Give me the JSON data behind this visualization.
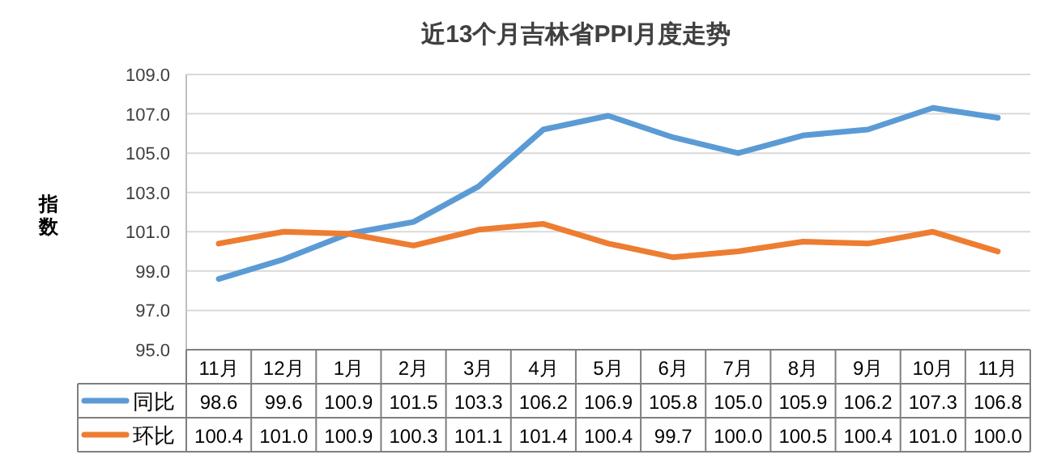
{
  "chart_data": {
    "type": "line",
    "title": "近13个月吉林省PPI月度走势",
    "ylabel": "指数",
    "categories": [
      "11月",
      "12月",
      "1月",
      "2月",
      "3月",
      "4月",
      "5月",
      "6月",
      "7月",
      "8月",
      "9月",
      "10月",
      "11月"
    ],
    "series": [
      {
        "name": "同比",
        "color": "#5b9bd5",
        "values": [
          98.6,
          99.6,
          100.9,
          101.5,
          103.3,
          106.2,
          106.9,
          105.8,
          105.0,
          105.9,
          106.2,
          107.3,
          106.8
        ],
        "value_labels": [
          "98.6",
          "99.6",
          "100.9",
          "101.5",
          "103.3",
          "106.2",
          "106.9",
          "105.8",
          "105.0",
          "105.9",
          "106.2",
          "107.3",
          "106.8"
        ]
      },
      {
        "name": "环比",
        "color": "#ed7d31",
        "values": [
          100.4,
          101.0,
          100.9,
          100.3,
          101.1,
          101.4,
          100.4,
          99.7,
          100.0,
          100.5,
          100.4,
          101.0,
          100.0
        ],
        "value_labels": [
          "100.4",
          "101.0",
          "100.9",
          "100.3",
          "101.1",
          "101.4",
          "100.4",
          "99.7",
          "100.0",
          "100.5",
          "100.4",
          "101.0",
          "100.0"
        ]
      }
    ],
    "ylim": [
      95,
      109
    ],
    "yticks": [
      {
        "value": 95,
        "label": "95.0"
      },
      {
        "value": 97,
        "label": "97.0"
      },
      {
        "value": 99,
        "label": "99.0"
      },
      {
        "value": 101,
        "label": "101.0"
      },
      {
        "value": 103,
        "label": "103.0"
      },
      {
        "value": 105,
        "label": "105.0"
      },
      {
        "value": 107,
        "label": "107.0"
      },
      {
        "value": 109,
        "label": "109.0"
      }
    ],
    "grid": "y",
    "legend": "bottom",
    "marker": "none",
    "line_style": "solid"
  }
}
